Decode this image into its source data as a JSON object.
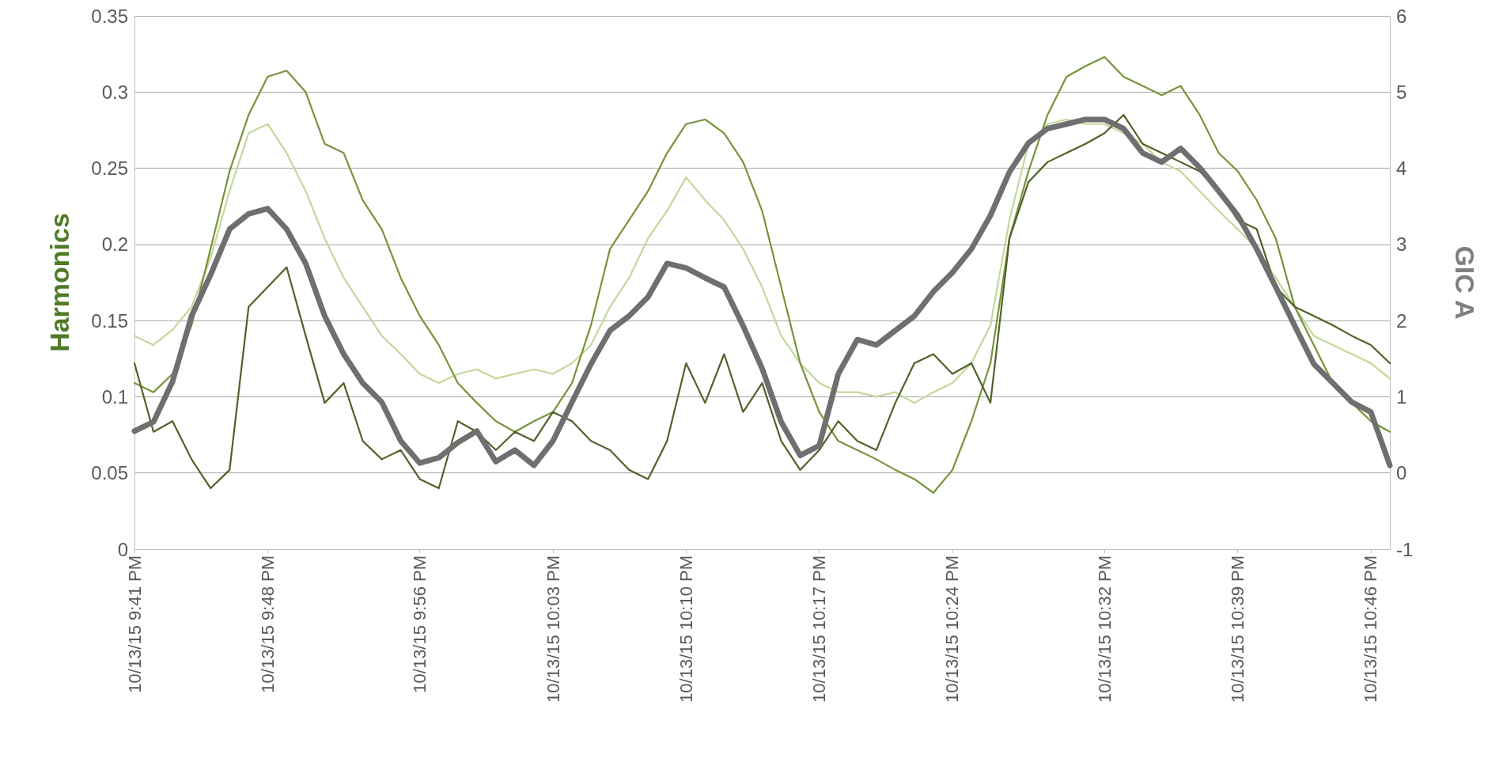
{
  "chart_data": {
    "type": "line",
    "ylabel": "Harmonics",
    "y2label": "GIC A",
    "x": [
      "--10-13T21:41",
      "--10-13T21:42",
      "--10-13T21:43",
      "--10-13T21:44",
      "--10-13T21:45",
      "--10-13T21:46",
      "--10-13T21:47",
      "--10-13T21:48",
      "--10-13T21:49",
      "--10-13T21:50",
      "--10-13T21:51",
      "--10-13T21:52",
      "--10-13T21:53",
      "--10-13T21:54",
      "--10-13T21:55",
      "--10-13T21:56",
      "--10-13T21:57",
      "--10-13T21:58",
      "--10-13T21:59",
      "--10-13T22:00",
      "--10-13T22:01",
      "--10-13T22:02",
      "--10-13T22:03",
      "--10-13T22:04",
      "--10-13T22:05",
      "--10-13T22:06",
      "--10-13T22:07",
      "--10-13T22:08",
      "--10-13T22:09",
      "--10-13T22:10",
      "--10-13T22:11",
      "--10-13T22:12",
      "--10-13T22:13",
      "--10-13T22:14",
      "--10-13T22:15",
      "--10-13T22:16",
      "--10-13T22:17",
      "--10-13T22:18",
      "--10-13T22:19",
      "--10-13T22:20",
      "--10-13T22:21",
      "--10-13T22:22",
      "--10-13T22:23",
      "--10-13T22:24",
      "--10-13T22:25",
      "--10-13T22:26",
      "--10-13T22:27",
      "--10-13T22:28",
      "--10-13T22:29",
      "--10-13T22:30",
      "--10-13T22:31",
      "--10-13T22:32",
      "--10-13T22:33",
      "--10-13T22:34",
      "--10-13T22:35",
      "--10-13T22:36",
      "--10-13T22:37",
      "--10-13T22:38",
      "--10-13T22:39",
      "--10-13T22:40",
      "--10-13T22:41",
      "--10-13T22:42",
      "--10-13T22:43",
      "--10-13T22:44",
      "--10-13T22:45",
      "--10-13T22:46",
      "--10-13T22:47"
    ],
    "xlim": [
      "--10-13T21:41",
      "--10-13T22:47"
    ],
    "xticks": [
      {
        "value": "--10-13T21:41",
        "label": "10/13/15 9:41 PM"
      },
      {
        "value": "--10-13T21:48",
        "label": "10/13/15 9:48 PM"
      },
      {
        "value": "--10-13T21:56",
        "label": "10/13/15 9:56 PM"
      },
      {
        "value": "--10-13T22:03",
        "label": "10/13/15 10:03 PM"
      },
      {
        "value": "--10-13T22:10",
        "label": "10/13/15 10:10 PM"
      },
      {
        "value": "--10-13T22:17",
        "label": "10/13/15 10:17 PM"
      },
      {
        "value": "--10-13T22:24",
        "label": "10/13/15 10:24 PM"
      },
      {
        "value": "--10-13T22:32",
        "label": "10/13/15 10:32 PM"
      },
      {
        "value": "--10-13T22:39",
        "label": "10/13/15 10:39 PM"
      },
      {
        "value": "--10-13T22:46",
        "label": "10/13/15 10:46 PM"
      }
    ],
    "ylim": [
      0,
      0.35
    ],
    "yticks": [
      0,
      0.05,
      0.1,
      0.15,
      0.2,
      0.25,
      0.3,
      0.35
    ],
    "y2lim": [
      -1,
      6
    ],
    "y2ticks": [
      -1,
      0,
      1,
      2,
      3,
      4,
      5,
      6
    ],
    "grid": "y",
    "marker": "none",
    "series": [
      {
        "color": "#c4d79b",
        "values": [
          0.14,
          0.134,
          0.144,
          0.159,
          0.191,
          0.235,
          0.273,
          0.279,
          0.26,
          0.235,
          0.204,
          0.178,
          0.159,
          0.14,
          0.128,
          0.115,
          0.109,
          0.115,
          0.118,
          0.112,
          0.115,
          0.118,
          0.115,
          0.122,
          0.134,
          0.159,
          0.178,
          0.204,
          0.222,
          0.244,
          0.229,
          0.216,
          0.197,
          0.172,
          0.14,
          0.122,
          0.109,
          0.103,
          0.103,
          0.1,
          0.103,
          0.096,
          0.103,
          0.109,
          0.122,
          0.147,
          0.216,
          0.266,
          0.279,
          0.282,
          0.279,
          0.279,
          0.273,
          0.266,
          0.254,
          0.248,
          0.235,
          0.222,
          0.21,
          0.197,
          0.178,
          0.159,
          0.14,
          0.134,
          0.128,
          0.122,
          0.112
        ]
      },
      {
        "color": "#77933c",
        "values": [
          0.109,
          0.103,
          0.115,
          0.147,
          0.197,
          0.248,
          0.285,
          0.31,
          0.314,
          0.3,
          0.266,
          0.26,
          0.229,
          0.21,
          0.178,
          0.153,
          0.134,
          0.109,
          0.096,
          0.084,
          0.077,
          0.084,
          0.09,
          0.109,
          0.147,
          0.197,
          0.216,
          0.235,
          0.26,
          0.279,
          0.282,
          0.273,
          0.254,
          0.222,
          0.172,
          0.122,
          0.09,
          0.071,
          0.065,
          0.059,
          0.052,
          0.046,
          0.037,
          0.052,
          0.084,
          0.122,
          0.204,
          0.248,
          0.285,
          0.31,
          0.317,
          0.323,
          0.31,
          0.304,
          0.298,
          0.304,
          0.285,
          0.26,
          0.248,
          0.229,
          0.204,
          0.159,
          0.134,
          0.109,
          0.096,
          0.084,
          0.077
        ]
      },
      {
        "color": "#4f6228",
        "values": [
          0.122,
          0.077,
          0.084,
          0.059,
          0.04,
          0.052,
          0.159,
          0.172,
          0.185,
          0.14,
          0.096,
          0.109,
          0.071,
          0.059,
          0.065,
          0.046,
          0.04,
          0.084,
          0.077,
          0.065,
          0.077,
          0.071,
          0.09,
          0.084,
          0.071,
          0.065,
          0.052,
          0.046,
          0.071,
          0.122,
          0.096,
          0.128,
          0.09,
          0.109,
          0.071,
          0.052,
          0.065,
          0.084,
          0.071,
          0.065,
          0.096,
          0.122,
          0.128,
          0.115,
          0.122,
          0.096,
          0.204,
          0.241,
          0.254,
          0.26,
          0.266,
          0.273,
          0.285,
          0.266,
          0.26,
          0.254,
          0.248,
          0.235,
          0.216,
          0.21,
          0.172,
          0.159,
          0.153,
          0.147,
          0.14,
          0.134,
          0.122
        ]
      },
      {
        "color": "#6f6f6f",
        "axis": "y2",
        "values": [
          0.55,
          0.67,
          1.2,
          2.06,
          2.6,
          3.2,
          3.4,
          3.47,
          3.2,
          2.75,
          2.06,
          1.56,
          1.18,
          0.93,
          0.42,
          0.13,
          0.2,
          0.4,
          0.55,
          0.15,
          0.3,
          0.1,
          0.42,
          0.93,
          1.43,
          1.87,
          2.06,
          2.31,
          2.75,
          2.69,
          2.56,
          2.44,
          1.93,
          1.37,
          0.67,
          0.23,
          0.36,
          1.3,
          1.75,
          1.68,
          1.87,
          2.06,
          2.38,
          2.63,
          2.94,
          3.38,
          3.95,
          4.33,
          4.52,
          4.58,
          4.64,
          4.64,
          4.52,
          4.2,
          4.08,
          4.26,
          4.01,
          3.7,
          3.38,
          2.94,
          2.44,
          1.93,
          1.43,
          1.18,
          0.93,
          0.8,
          0.1
        ]
      }
    ]
  }
}
